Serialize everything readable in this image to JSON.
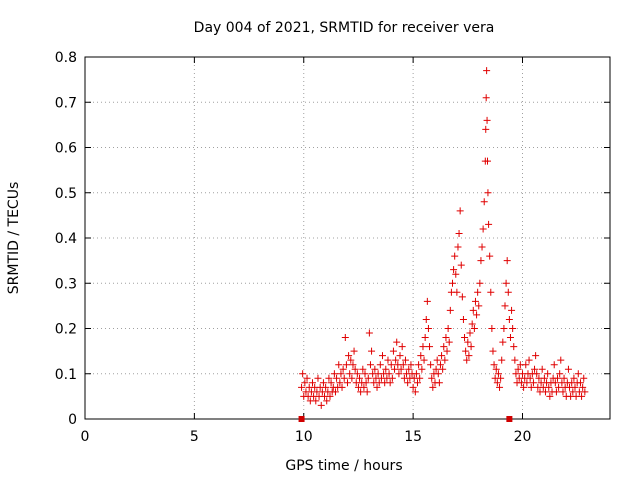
{
  "chart_data": {
    "type": "scatter",
    "title": "Day 004 of 2021, SRMTID for receiver vera",
    "xlabel": "GPS time / hours",
    "ylabel": "SRMTID / TECUs",
    "xlim": [
      0,
      24
    ],
    "ylim": [
      0,
      0.8
    ],
    "x_ticks": [
      0,
      5,
      10,
      15,
      20
    ],
    "x_tick_labels": [
      "0",
      "5",
      "10",
      "15",
      "20"
    ],
    "y_ticks": [
      0,
      0.1,
      0.2,
      0.3,
      0.4,
      0.5,
      0.6,
      0.7,
      0.8
    ],
    "y_tick_labels": [
      "0",
      "0.1",
      "0.2",
      "0.3",
      "0.4",
      "0.5",
      "0.6",
      "0.7",
      "0.8"
    ],
    "grid": true,
    "marker": "+",
    "color": "#e00000",
    "gap_markers_x": [
      9.9,
      19.4
    ],
    "series": [
      {
        "name": "SRMTID",
        "points": [
          [
            9.9,
            0.07
          ],
          [
            9.95,
            0.1
          ],
          [
            10.0,
            0.05
          ],
          [
            10.05,
            0.08
          ],
          [
            10.1,
            0.06
          ],
          [
            10.15,
            0.09
          ],
          [
            10.2,
            0.05
          ],
          [
            10.25,
            0.07
          ],
          [
            10.3,
            0.04
          ],
          [
            10.35,
            0.06
          ],
          [
            10.4,
            0.08
          ],
          [
            10.45,
            0.05
          ],
          [
            10.5,
            0.07
          ],
          [
            10.55,
            0.04
          ],
          [
            10.6,
            0.06
          ],
          [
            10.65,
            0.09
          ],
          [
            10.7,
            0.05
          ],
          [
            10.75,
            0.07
          ],
          [
            10.8,
            0.03
          ],
          [
            10.85,
            0.06
          ],
          [
            10.9,
            0.08
          ],
          [
            10.95,
            0.05
          ],
          [
            11.0,
            0.07
          ],
          [
            11.05,
            0.04
          ],
          [
            11.1,
            0.06
          ],
          [
            11.15,
            0.09
          ],
          [
            11.2,
            0.05
          ],
          [
            11.25,
            0.08
          ],
          [
            11.3,
            0.06
          ],
          [
            11.35,
            0.07
          ],
          [
            11.4,
            0.1
          ],
          [
            11.45,
            0.06
          ],
          [
            11.5,
            0.09
          ],
          [
            11.55,
            0.07
          ],
          [
            11.6,
            0.12
          ],
          [
            11.65,
            0.08
          ],
          [
            11.7,
            0.1
          ],
          [
            11.75,
            0.07
          ],
          [
            11.8,
            0.11
          ],
          [
            11.85,
            0.09
          ],
          [
            11.9,
            0.18
          ],
          [
            11.95,
            0.12
          ],
          [
            12.0,
            0.08
          ],
          [
            12.05,
            0.14
          ],
          [
            12.1,
            0.1
          ],
          [
            12.15,
            0.13
          ],
          [
            12.2,
            0.09
          ],
          [
            12.25,
            0.12
          ],
          [
            12.3,
            0.15
          ],
          [
            12.35,
            0.11
          ],
          [
            12.4,
            0.08
          ],
          [
            12.45,
            0.1
          ],
          [
            12.5,
            0.07
          ],
          [
            12.55,
            0.09
          ],
          [
            12.6,
            0.06
          ],
          [
            12.65,
            0.08
          ],
          [
            12.7,
            0.11
          ],
          [
            12.75,
            0.07
          ],
          [
            12.8,
            0.1
          ],
          [
            12.85,
            0.08
          ],
          [
            12.9,
            0.06
          ],
          [
            12.95,
            0.09
          ],
          [
            13.0,
            0.19
          ],
          [
            13.05,
            0.12
          ],
          [
            13.1,
            0.15
          ],
          [
            13.15,
            0.1
          ],
          [
            13.2,
            0.08
          ],
          [
            13.25,
            0.11
          ],
          [
            13.3,
            0.09
          ],
          [
            13.35,
            0.07
          ],
          [
            13.4,
            0.1
          ],
          [
            13.45,
            0.08
          ],
          [
            13.5,
            0.12
          ],
          [
            13.55,
            0.09
          ],
          [
            13.6,
            0.14
          ],
          [
            13.65,
            0.1
          ],
          [
            13.7,
            0.08
          ],
          [
            13.75,
            0.11
          ],
          [
            13.8,
            0.09
          ],
          [
            13.85,
            0.13
          ],
          [
            13.9,
            0.1
          ],
          [
            13.95,
            0.08
          ],
          [
            14.0,
            0.12
          ],
          [
            14.05,
            0.09
          ],
          [
            14.1,
            0.15
          ],
          [
            14.15,
            0.11
          ],
          [
            14.2,
            0.13
          ],
          [
            14.25,
            0.17
          ],
          [
            14.3,
            0.12
          ],
          [
            14.35,
            0.1
          ],
          [
            14.4,
            0.14
          ],
          [
            14.45,
            0.11
          ],
          [
            14.5,
            0.16
          ],
          [
            14.55,
            0.12
          ],
          [
            14.6,
            0.09
          ],
          [
            14.65,
            0.13
          ],
          [
            14.7,
            0.1
          ],
          [
            14.75,
            0.08
          ],
          [
            14.8,
            0.11
          ],
          [
            14.85,
            0.09
          ],
          [
            14.9,
            0.12
          ],
          [
            14.95,
            0.1
          ],
          [
            15.0,
            0.07
          ],
          [
            15.05,
            0.09
          ],
          [
            15.1,
            0.06
          ],
          [
            15.15,
            0.1
          ],
          [
            15.2,
            0.08
          ],
          [
            15.25,
            0.12
          ],
          [
            15.3,
            0.09
          ],
          [
            15.35,
            0.14
          ],
          [
            15.4,
            0.11
          ],
          [
            15.45,
            0.16
          ],
          [
            15.5,
            0.13
          ],
          [
            15.55,
            0.18
          ],
          [
            15.6,
            0.22
          ],
          [
            15.65,
            0.26
          ],
          [
            15.7,
            0.2
          ],
          [
            15.75,
            0.16
          ],
          [
            15.8,
            0.12
          ],
          [
            15.85,
            0.09
          ],
          [
            15.9,
            0.07
          ],
          [
            15.95,
            0.1
          ],
          [
            16.0,
            0.08
          ],
          [
            16.05,
            0.11
          ],
          [
            16.1,
            0.13
          ],
          [
            16.15,
            0.1
          ],
          [
            16.2,
            0.08
          ],
          [
            16.25,
            0.12
          ],
          [
            16.3,
            0.14
          ],
          [
            16.35,
            0.11
          ],
          [
            16.4,
            0.16
          ],
          [
            16.45,
            0.13
          ],
          [
            16.5,
            0.18
          ],
          [
            16.55,
            0.15
          ],
          [
            16.6,
            0.2
          ],
          [
            16.65,
            0.17
          ],
          [
            16.7,
            0.24
          ],
          [
            16.75,
            0.28
          ],
          [
            16.8,
            0.3
          ],
          [
            16.85,
            0.33
          ],
          [
            16.9,
            0.36
          ],
          [
            16.95,
            0.32
          ],
          [
            17.0,
            0.28
          ],
          [
            17.05,
            0.38
          ],
          [
            17.1,
            0.41
          ],
          [
            17.15,
            0.46
          ],
          [
            17.2,
            0.34
          ],
          [
            17.25,
            0.27
          ],
          [
            17.3,
            0.22
          ],
          [
            17.35,
            0.18
          ],
          [
            17.4,
            0.15
          ],
          [
            17.45,
            0.13
          ],
          [
            17.5,
            0.17
          ],
          [
            17.55,
            0.14
          ],
          [
            17.6,
            0.19
          ],
          [
            17.65,
            0.16
          ],
          [
            17.7,
            0.21
          ],
          [
            17.75,
            0.24
          ],
          [
            17.8,
            0.2
          ],
          [
            17.85,
            0.26
          ],
          [
            17.9,
            0.23
          ],
          [
            17.95,
            0.28
          ],
          [
            18.0,
            0.25
          ],
          [
            18.05,
            0.3
          ],
          [
            18.1,
            0.35
          ],
          [
            18.15,
            0.38
          ],
          [
            18.2,
            0.42
          ],
          [
            18.25,
            0.48
          ],
          [
            18.3,
            0.57
          ],
          [
            18.32,
            0.64
          ],
          [
            18.34,
            0.71
          ],
          [
            18.36,
            0.77
          ],
          [
            18.38,
            0.66
          ],
          [
            18.4,
            0.57
          ],
          [
            18.42,
            0.5
          ],
          [
            18.45,
            0.43
          ],
          [
            18.5,
            0.36
          ],
          [
            18.55,
            0.28
          ],
          [
            18.6,
            0.2
          ],
          [
            18.65,
            0.15
          ],
          [
            18.7,
            0.12
          ],
          [
            18.75,
            0.09
          ],
          [
            18.8,
            0.11
          ],
          [
            18.85,
            0.08
          ],
          [
            18.9,
            0.1
          ],
          [
            18.95,
            0.07
          ],
          [
            19.0,
            0.09
          ],
          [
            19.05,
            0.13
          ],
          [
            19.1,
            0.17
          ],
          [
            19.15,
            0.2
          ],
          [
            19.2,
            0.25
          ],
          [
            19.25,
            0.3
          ],
          [
            19.3,
            0.35
          ],
          [
            19.35,
            0.28
          ],
          [
            19.4,
            0.22
          ],
          [
            19.45,
            0.18
          ],
          [
            19.5,
            0.24
          ],
          [
            19.55,
            0.2
          ],
          [
            19.6,
            0.16
          ],
          [
            19.65,
            0.13
          ],
          [
            19.7,
            0.1
          ],
          [
            19.75,
            0.08
          ],
          [
            19.8,
            0.11
          ],
          [
            19.85,
            0.09
          ],
          [
            19.9,
            0.12
          ],
          [
            19.95,
            0.08
          ],
          [
            20.0,
            0.1
          ],
          [
            20.05,
            0.07
          ],
          [
            20.1,
            0.09
          ],
          [
            20.15,
            0.12
          ],
          [
            20.2,
            0.08
          ],
          [
            20.25,
            0.1
          ],
          [
            20.3,
            0.13
          ],
          [
            20.35,
            0.09
          ],
          [
            20.4,
            0.07
          ],
          [
            20.45,
            0.1
          ],
          [
            20.5,
            0.08
          ],
          [
            20.55,
            0.11
          ],
          [
            20.6,
            0.14
          ],
          [
            20.65,
            0.1
          ],
          [
            20.7,
            0.07
          ],
          [
            20.75,
            0.09
          ],
          [
            20.8,
            0.06
          ],
          [
            20.85,
            0.08
          ],
          [
            20.9,
            0.11
          ],
          [
            20.95,
            0.07
          ],
          [
            21.0,
            0.09
          ],
          [
            21.05,
            0.06
          ],
          [
            21.1,
            0.08
          ],
          [
            21.15,
            0.1
          ],
          [
            21.2,
            0.07
          ],
          [
            21.25,
            0.05
          ],
          [
            21.3,
            0.08
          ],
          [
            21.35,
            0.06
          ],
          [
            21.4,
            0.09
          ],
          [
            21.45,
            0.12
          ],
          [
            21.5,
            0.08
          ],
          [
            21.55,
            0.06
          ],
          [
            21.6,
            0.09
          ],
          [
            21.65,
            0.07
          ],
          [
            21.7,
            0.1
          ],
          [
            21.75,
            0.13
          ],
          [
            21.8,
            0.08
          ],
          [
            21.85,
            0.06
          ],
          [
            21.9,
            0.09
          ],
          [
            21.95,
            0.07
          ],
          [
            22.0,
            0.05
          ],
          [
            22.05,
            0.08
          ],
          [
            22.1,
            0.11
          ],
          [
            22.15,
            0.07
          ],
          [
            22.2,
            0.05
          ],
          [
            22.25,
            0.08
          ],
          [
            22.3,
            0.06
          ],
          [
            22.35,
            0.09
          ],
          [
            22.4,
            0.07
          ],
          [
            22.45,
            0.05
          ],
          [
            22.5,
            0.08
          ],
          [
            22.55,
            0.1
          ],
          [
            22.6,
            0.06
          ],
          [
            22.65,
            0.08
          ],
          [
            22.7,
            0.05
          ],
          [
            22.75,
            0.07
          ],
          [
            22.8,
            0.09
          ],
          [
            22.85,
            0.06
          ]
        ]
      }
    ]
  }
}
